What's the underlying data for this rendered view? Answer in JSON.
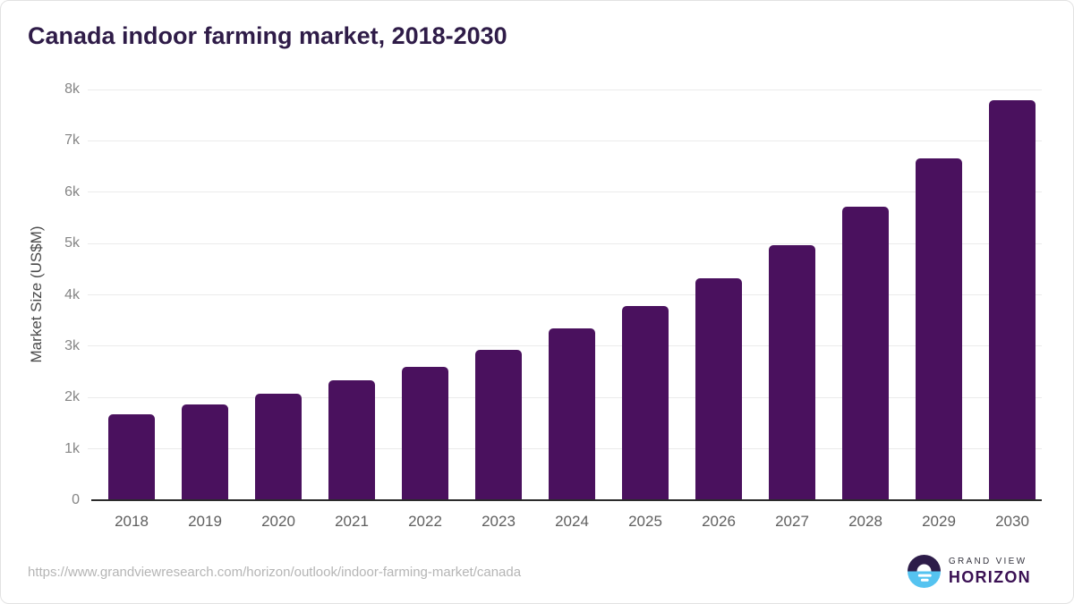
{
  "page": {
    "title": "Canada indoor farming market, 2018-2030"
  },
  "chart_data": {
    "type": "bar",
    "title": "Canada indoor farming market, 2018-2030",
    "xlabel": "",
    "ylabel": "Market Size (US$M)",
    "categories": [
      "2018",
      "2019",
      "2020",
      "2021",
      "2022",
      "2023",
      "2024",
      "2025",
      "2026",
      "2027",
      "2028",
      "2029",
      "2030"
    ],
    "values": [
      1680,
      1870,
      2070,
      2330,
      2600,
      2930,
      3340,
      3790,
      4320,
      4960,
      5710,
      6650,
      7790
    ],
    "ylim": [
      0,
      8000
    ],
    "yticks": [
      {
        "value": 0,
        "label": "0"
      },
      {
        "value": 1000,
        "label": "1k"
      },
      {
        "value": 2000,
        "label": "2k"
      },
      {
        "value": 3000,
        "label": "3k"
      },
      {
        "value": 4000,
        "label": "4k"
      },
      {
        "value": 5000,
        "label": "5k"
      },
      {
        "value": 6000,
        "label": "6k"
      },
      {
        "value": 7000,
        "label": "7k"
      },
      {
        "value": 8000,
        "label": "8k"
      }
    ],
    "grid": true,
    "legend_position": "none",
    "bar_color": "#4a115e",
    "gridline_color": "#ebebeb",
    "axis_line_color": "#2b2b2b"
  },
  "footer": {
    "source_url": "https://www.grandviewresearch.com/horizon/outlook/indoor-farming-market/canada",
    "logo": {
      "brand_top": "GRAND VIEW",
      "brand_bottom": "HORIZON",
      "icon_purple": "#2d1c49",
      "icon_blue": "#55c3f0"
    }
  }
}
